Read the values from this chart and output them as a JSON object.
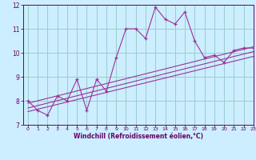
{
  "x_data": [
    0,
    1,
    2,
    3,
    4,
    5,
    6,
    7,
    8,
    9,
    10,
    11,
    12,
    13,
    14,
    15,
    16,
    17,
    18,
    19,
    20,
    21,
    22,
    23
  ],
  "y_main": [
    8.0,
    7.6,
    7.4,
    8.2,
    8.0,
    8.9,
    7.6,
    8.9,
    8.4,
    9.8,
    11.0,
    11.0,
    10.6,
    11.9,
    11.4,
    11.2,
    11.7,
    10.5,
    9.8,
    9.9,
    9.6,
    10.1,
    10.2,
    10.2
  ],
  "regression_lines": [
    {
      "x0": 0,
      "y0": 7.9,
      "x1": 23,
      "y1": 10.25
    },
    {
      "x0": 0,
      "y0": 7.7,
      "x1": 23,
      "y1": 10.05
    },
    {
      "x0": 0,
      "y0": 7.55,
      "x1": 23,
      "y1": 9.85
    }
  ],
  "line_color": "#993399",
  "bg_color": "#cceeff",
  "grid_color": "#99cccc",
  "axis_color": "#660066",
  "xlabel": "Windchill (Refroidissement éolien,°C)",
  "ylim": [
    7,
    12
  ],
  "xlim": [
    -0.5,
    23
  ],
  "yticks": [
    7,
    8,
    9,
    10,
    11,
    12
  ],
  "xticks": [
    0,
    1,
    2,
    3,
    4,
    5,
    6,
    7,
    8,
    9,
    10,
    11,
    12,
    13,
    14,
    15,
    16,
    17,
    18,
    19,
    20,
    21,
    22,
    23
  ]
}
